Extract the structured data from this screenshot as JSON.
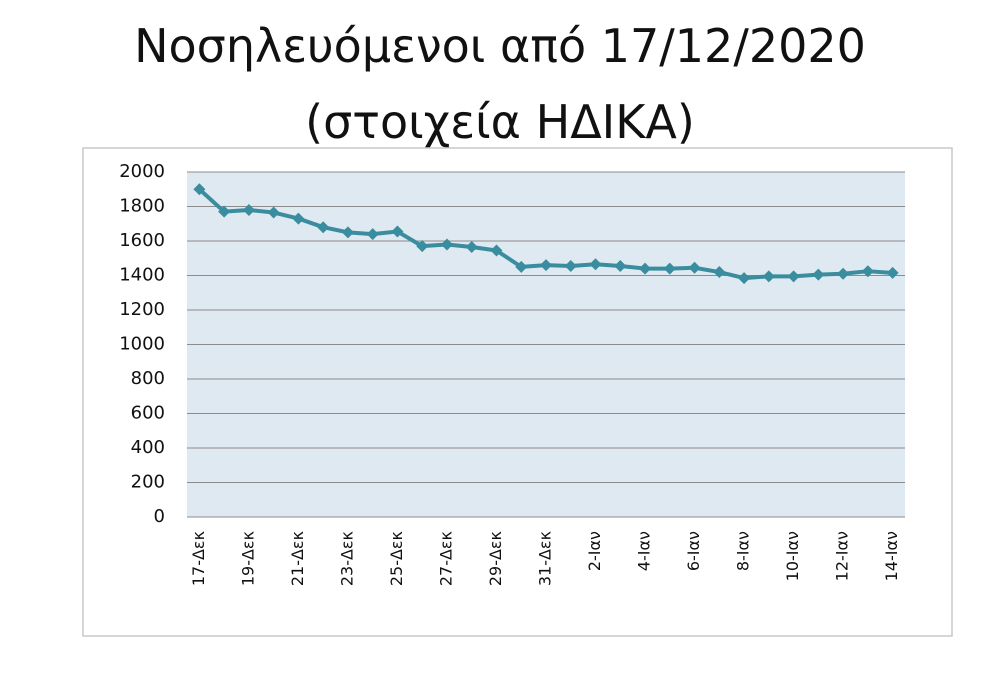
{
  "chart_data": {
    "type": "line",
    "title": "Νοσηλευόμενοι από 17/12/2020",
    "subtitle": "(στοιχεία ΗΔΙΚΑ)",
    "categories": [
      "17-Δεκ",
      null,
      "19-Δεκ",
      null,
      "21-Δεκ",
      null,
      "23-Δεκ",
      null,
      "25-Δεκ",
      null,
      "27-Δεκ",
      null,
      "29-Δεκ",
      null,
      "31-Δεκ",
      null,
      "2-Ιαν",
      null,
      "4-Ιαν",
      null,
      "6-Ιαν",
      null,
      "8-Ιαν",
      null,
      "10-Ιαν",
      null,
      "12-Ιαν",
      null,
      "14-Ιαν"
    ],
    "values": [
      1900,
      1770,
      1780,
      1765,
      1730,
      1680,
      1650,
      1640,
      1655,
      1570,
      1580,
      1565,
      1545,
      1450,
      1460,
      1455,
      1465,
      1455,
      1440,
      1440,
      1445,
      1420,
      1385,
      1395,
      1395,
      1405,
      1410,
      1425,
      1415
    ],
    "color": "#3a8d9e",
    "ylim": [
      0,
      2000
    ],
    "yticks": [
      0,
      200,
      400,
      600,
      800,
      1000,
      1200,
      1400,
      1600,
      1800,
      2000
    ],
    "grid": true
  }
}
